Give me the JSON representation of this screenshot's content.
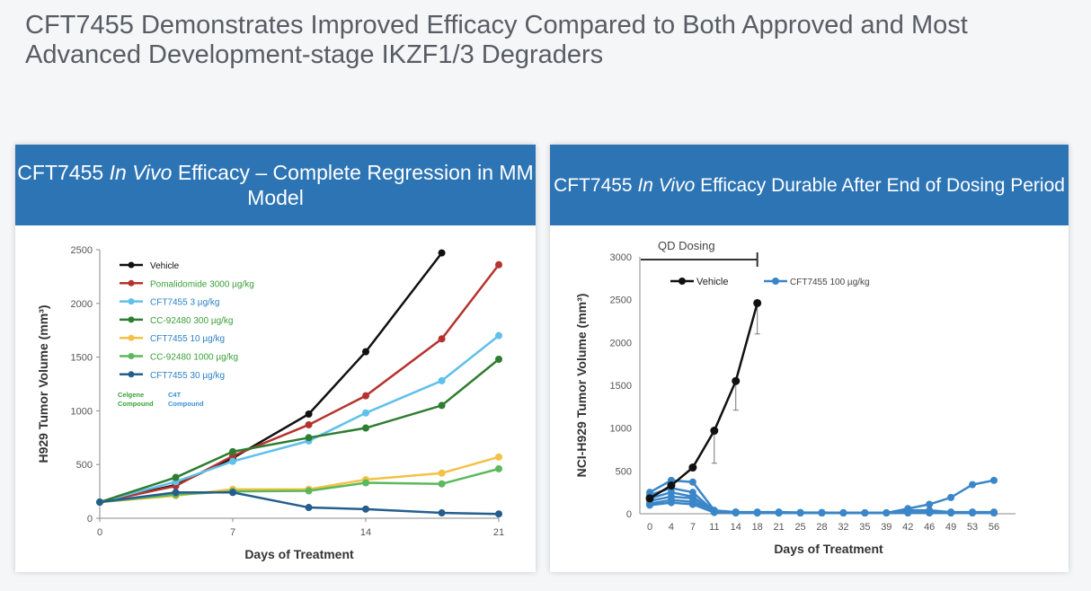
{
  "page_title": "CFT7455 Demonstrates Improved Efficacy Compared to Both Approved and Most Advanced Development-stage IKZF1/3 Degraders",
  "chart_data": [
    {
      "type": "line",
      "title_parts": [
        "CFT7455 ",
        "In Vivo",
        " Efficacy – Complete Regression in MM Model"
      ],
      "xlabel": "Days of Treatment",
      "ylabel": "H929 Tumor Volume (mm³)",
      "xlim": [
        0,
        21
      ],
      "ylim": [
        0,
        2500
      ],
      "x_ticks": [
        0,
        7,
        14,
        21
      ],
      "y_ticks": [
        0,
        500,
        1000,
        1500,
        2000,
        2500
      ],
      "legend_position": "top-left",
      "annotations": [
        {
          "text": [
            "Celgene",
            "Compound"
          ],
          "color": "#3aa03a"
        },
        {
          "text": [
            "C4T",
            "Compound"
          ],
          "color": "#3a8fd6"
        }
      ],
      "series": [
        {
          "name": "Vehicle",
          "color": "#111111",
          "label_color": "#111111",
          "x": [
            0,
            4,
            7,
            11,
            14,
            18
          ],
          "y": [
            150,
            310,
            560,
            970,
            1550,
            2470
          ]
        },
        {
          "name": "Pomalidomide 3000 µg/kg",
          "color": "#b5332e",
          "label_color": "#3aa03a",
          "x": [
            0,
            4,
            7,
            11,
            14,
            18,
            21
          ],
          "y": [
            150,
            300,
            580,
            870,
            1140,
            1670,
            2360
          ]
        },
        {
          "name": "CFT7455 3 µg/kg",
          "color": "#5fc0ea",
          "label_color": "#2e80c6",
          "x": [
            0,
            4,
            7,
            11,
            14,
            18,
            21
          ],
          "y": [
            150,
            340,
            530,
            720,
            980,
            1280,
            1700
          ]
        },
        {
          "name": "CC-92480 300 µg/kg",
          "color": "#2e7d32",
          "label_color": "#3aa03a",
          "x": [
            0,
            4,
            7,
            11,
            14,
            18,
            21
          ],
          "y": [
            150,
            380,
            620,
            750,
            840,
            1050,
            1480
          ]
        },
        {
          "name": "CFT7455 10 µg/kg",
          "color": "#f3c145",
          "label_color": "#2e80c6",
          "x": [
            0,
            4,
            7,
            11,
            14,
            18,
            21
          ],
          "y": [
            150,
            210,
            270,
            270,
            360,
            420,
            570
          ]
        },
        {
          "name": "CC-92480 1000 µg/kg",
          "color": "#5cb85c",
          "label_color": "#3aa03a",
          "x": [
            0,
            4,
            7,
            11,
            14,
            18,
            21
          ],
          "y": [
            150,
            220,
            250,
            255,
            330,
            320,
            460
          ]
        },
        {
          "name": "CFT7455 30 µg/kg",
          "color": "#245e8e",
          "label_color": "#2e80c6",
          "x": [
            0,
            4,
            7,
            11,
            14,
            18,
            21
          ],
          "y": [
            150,
            240,
            240,
            100,
            85,
            50,
            40
          ]
        }
      ]
    },
    {
      "type": "line",
      "title_parts": [
        "CFT7455 ",
        "In Vivo",
        " Efficacy Durable After End of Dosing Period"
      ],
      "xlabel": "Days of Treatment",
      "ylabel": "NCI-H929 Tumor Volume (mm³)",
      "x_categories": [
        "0",
        "4",
        "7",
        "11",
        "14",
        "18",
        "21",
        "25",
        "28",
        "32",
        "35",
        "39",
        "42",
        "46",
        "49",
        "53",
        "56"
      ],
      "ylim": [
        0,
        3000
      ],
      "y_ticks": [
        0,
        500,
        1000,
        1500,
        2000,
        2500,
        3000
      ],
      "legend_position": "top",
      "dosing_label": "QD Dosing",
      "dosing_range": [
        0,
        18
      ],
      "vehicle": {
        "name": "Vehicle",
        "color": "#111111",
        "x": [
          0,
          4,
          7,
          11,
          14,
          18
        ],
        "y": [
          180,
          330,
          540,
          970,
          1550,
          2460
        ],
        "err": [
          0,
          0,
          0,
          380,
          340,
          360
        ]
      },
      "cft": {
        "name": "CFT7455 100 µg/kg",
        "color": "#3a86c8",
        "x": [
          "0",
          "4",
          "7",
          "11",
          "14",
          "18",
          "21",
          "25",
          "28",
          "32",
          "35",
          "39",
          "42",
          "46",
          "49",
          "53",
          "56"
        ],
        "individual_series": [
          [
            250,
            390,
            370,
            40,
            20,
            20,
            20,
            15,
            15,
            10,
            10,
            10,
            60,
            110,
            190,
            340,
            390
          ],
          [
            220,
            300,
            250,
            30,
            20,
            15,
            15,
            10,
            10,
            10,
            10,
            10,
            40,
            40,
            20,
            20,
            20
          ],
          [
            180,
            250,
            200,
            25,
            15,
            15,
            10,
            10,
            10,
            10,
            10,
            10,
            20,
            20,
            15,
            15,
            15
          ],
          [
            150,
            200,
            180,
            20,
            15,
            10,
            10,
            10,
            10,
            10,
            10,
            10,
            15,
            15,
            10,
            10,
            10
          ],
          [
            120,
            160,
            140,
            20,
            10,
            10,
            10,
            10,
            10,
            10,
            10,
            10,
            10,
            10,
            10,
            10,
            10
          ],
          [
            100,
            130,
            110,
            15,
            10,
            10,
            10,
            10,
            10,
            10,
            10,
            10,
            10,
            10,
            10,
            10,
            10
          ]
        ]
      }
    }
  ]
}
